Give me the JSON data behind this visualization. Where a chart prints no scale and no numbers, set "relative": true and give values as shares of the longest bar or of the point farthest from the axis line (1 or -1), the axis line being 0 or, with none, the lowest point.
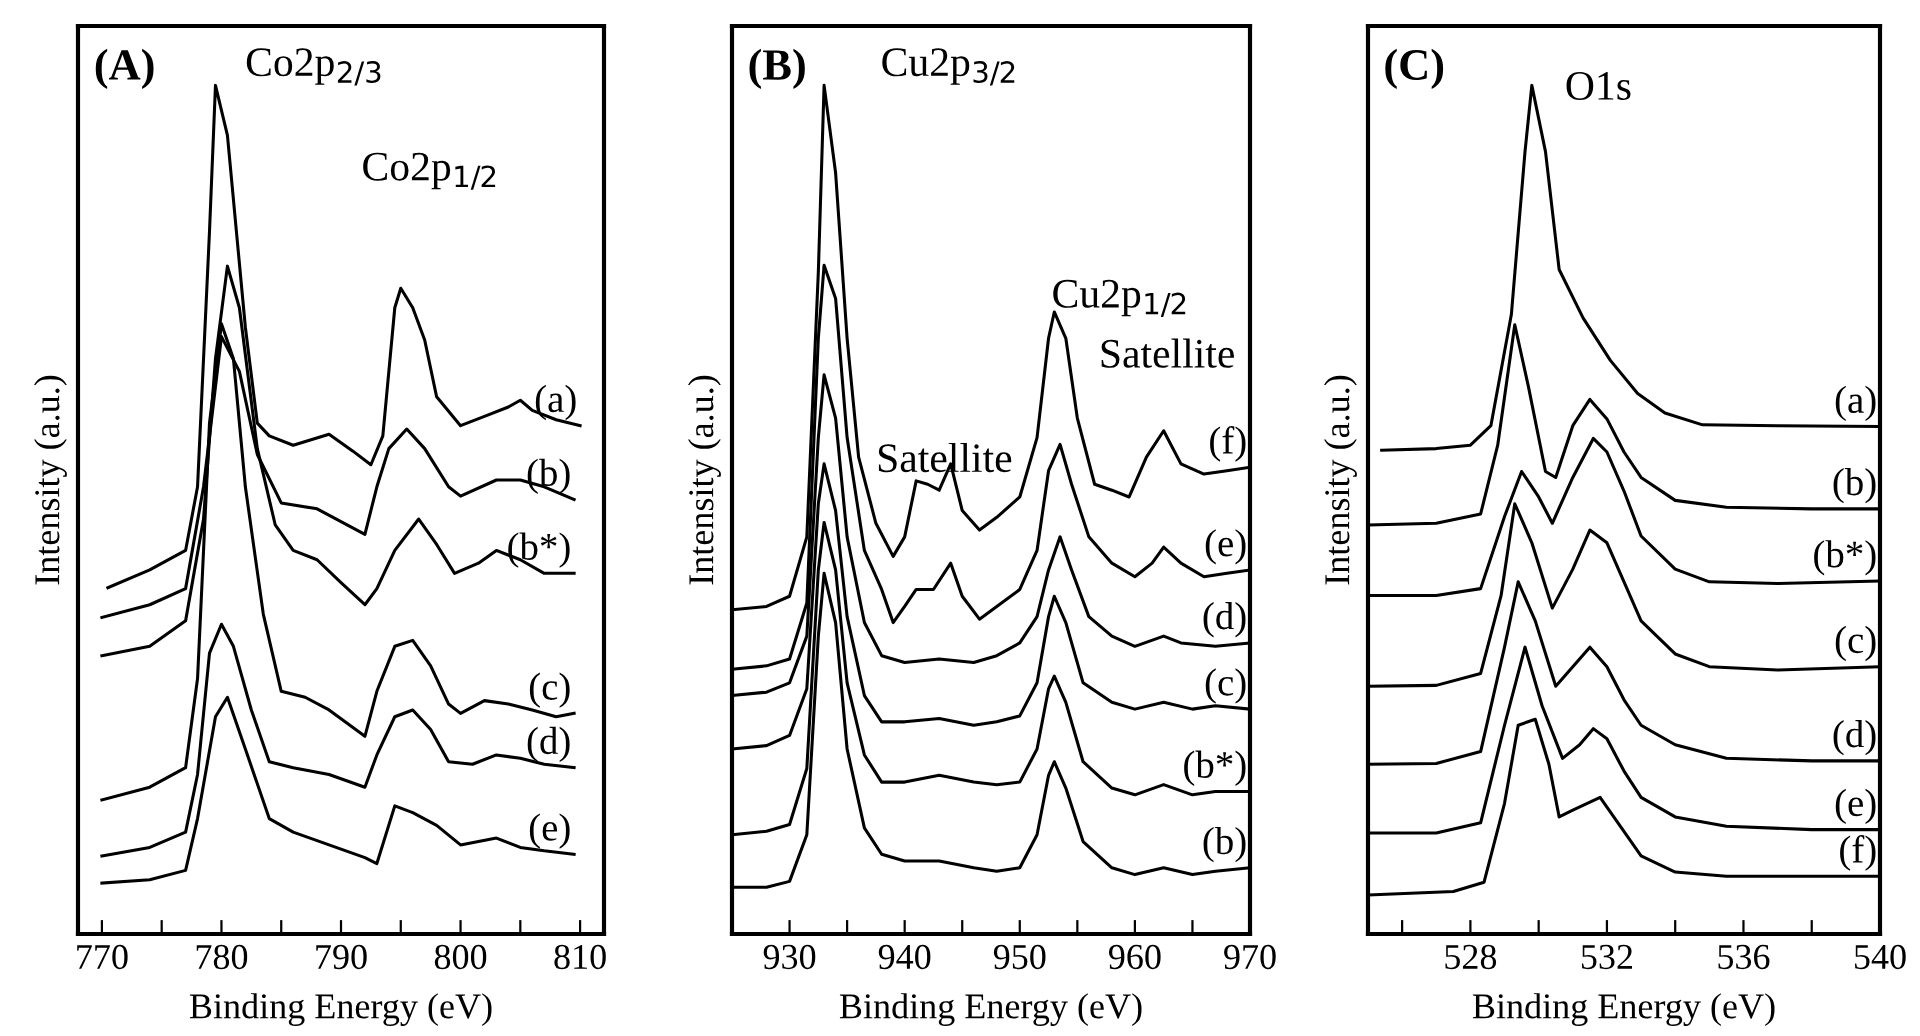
{
  "chart_data": [
    {
      "type": "line",
      "relative": true,
      "xlabel": "Binding Energy (eV)",
      "ylabel": "Intensity (a.u.)",
      "xlim": [
        768,
        812
      ],
      "xticks": [
        770,
        {
          "value": 775,
          "label": null
        },
        780,
        {
          "value": 785,
          "label": null
        },
        790,
        {
          "value": 795,
          "label": null
        },
        800,
        {
          "value": 805,
          "label": null
        },
        810
      ],
      "tick_labels": "x",
      "grid": false,
      "legend": false,
      "annotations": [
        "(A)",
        "Co2p$_{2/3}$",
        "Co2p$_{1/2}$"
      ],
      "series": [
        {
          "name": "(a)",
          "color": "#000000",
          "x": [
            770.5,
            774,
            777,
            778,
            779,
            779.5,
            780.5,
            782,
            783,
            784,
            786,
            789,
            791,
            792.5,
            793.5,
            794.5,
            795,
            796,
            797,
            798,
            800,
            802,
            804,
            805,
            806,
            808,
            810
          ],
          "values": [
            0.408,
            0.429,
            0.452,
            0.527,
            0.828,
            1.0,
            0.941,
            0.715,
            0.602,
            0.587,
            0.576,
            0.589,
            0.569,
            0.553,
            0.587,
            0.738,
            0.761,
            0.738,
            0.7,
            0.633,
            0.599,
            0.61,
            0.621,
            0.629,
            0.617,
            0.606,
            0.599
          ]
        },
        {
          "name": "(b)",
          "color": "#000000",
          "x": [
            770,
            774,
            777,
            778.5,
            780,
            781.5,
            783,
            785,
            788,
            792,
            793,
            794,
            795.5,
            797,
            799,
            800,
            803,
            805,
            807,
            809.5
          ],
          "values": [
            0.373,
            0.388,
            0.407,
            0.527,
            0.704,
            0.663,
            0.565,
            0.508,
            0.501,
            0.471,
            0.527,
            0.572,
            0.595,
            0.572,
            0.527,
            0.516,
            0.535,
            0.535,
            0.527,
            0.512
          ]
        },
        {
          "name": "(b*)",
          "color": "#000000",
          "x": [
            770,
            774,
            777,
            778.5,
            779.5,
            780.5,
            781.5,
            783,
            784.5,
            786,
            788,
            790,
            792,
            793,
            794.5,
            796.5,
            798,
            799.5,
            801.5,
            803,
            805,
            807,
            809.5
          ],
          "values": [
            0.328,
            0.339,
            0.369,
            0.489,
            0.678,
            0.787,
            0.738,
            0.572,
            0.482,
            0.452,
            0.441,
            0.414,
            0.388,
            0.407,
            0.452,
            0.489,
            0.459,
            0.425,
            0.437,
            0.452,
            0.441,
            0.425,
            0.425
          ]
        },
        {
          "name": "(c)",
          "color": "#000000",
          "x": [
            770,
            774,
            777,
            778,
            779,
            780,
            781,
            782,
            783.5,
            785,
            787,
            789,
            792,
            793,
            794.5,
            796,
            797.5,
            799,
            800,
            802,
            804,
            806,
            808,
            809.5
          ],
          "values": [
            0.158,
            0.173,
            0.196,
            0.301,
            0.602,
            0.719,
            0.678,
            0.527,
            0.377,
            0.286,
            0.279,
            0.264,
            0.233,
            0.286,
            0.339,
            0.346,
            0.316,
            0.271,
            0.26,
            0.275,
            0.271,
            0.264,
            0.256,
            0.26
          ]
        },
        {
          "name": "(d)",
          "color": "#000000",
          "x": [
            770,
            774,
            777,
            778,
            779,
            780,
            781,
            782.5,
            784,
            786,
            789,
            792,
            793,
            794.5,
            796,
            797.5,
            799,
            801,
            803,
            805,
            807,
            809.5
          ],
          "values": [
            0.092,
            0.102,
            0.12,
            0.188,
            0.331,
            0.365,
            0.339,
            0.264,
            0.203,
            0.196,
            0.188,
            0.173,
            0.211,
            0.256,
            0.264,
            0.241,
            0.203,
            0.2,
            0.211,
            0.207,
            0.2,
            0.196
          ]
        },
        {
          "name": "(e)",
          "color": "#000000",
          "x": [
            770,
            774,
            777,
            778,
            779.5,
            780.5,
            782,
            784,
            786,
            789,
            792,
            793,
            794.5,
            796,
            798,
            800,
            803,
            805,
            807,
            809.5
          ],
          "values": [
            0.06,
            0.064,
            0.075,
            0.136,
            0.256,
            0.279,
            0.218,
            0.136,
            0.12,
            0.105,
            0.09,
            0.083,
            0.151,
            0.143,
            0.128,
            0.105,
            0.113,
            0.102,
            0.098,
            0.094
          ]
        }
      ]
    },
    {
      "type": "line",
      "relative": true,
      "xlabel": "Binding Energy (eV)",
      "ylabel": "Intensity (a.u.)",
      "xlim": [
        925,
        970
      ],
      "xticks": [
        930,
        {
          "value": 935,
          "label": null
        },
        940,
        {
          "value": 945,
          "label": null
        },
        950,
        {
          "value": 955,
          "label": null
        },
        960,
        {
          "value": 965,
          "label": null
        },
        970
      ],
      "tick_labels": "x",
      "grid": false,
      "legend": false,
      "annotations": [
        "(B)",
        "Cu2p$_{3/2}$",
        "Cu2p$_{1/2}$",
        "Satellite",
        "Satellite"
      ],
      "series": [
        {
          "name": "(f)",
          "color": "#000000",
          "x": [
            925,
            928,
            930,
            931.5,
            932.5,
            933,
            934,
            935,
            936,
            937.5,
            939,
            940,
            941,
            942,
            943,
            944,
            945,
            946.5,
            948,
            950,
            951.5,
            952.5,
            953,
            954,
            955,
            956.5,
            958,
            959.5,
            961,
            962.5,
            964,
            966,
            968,
            970
          ],
          "values": [
            0.382,
            0.386,
            0.398,
            0.468,
            0.78,
            1.0,
            0.897,
            0.702,
            0.562,
            0.484,
            0.445,
            0.468,
            0.534,
            0.53,
            0.523,
            0.554,
            0.499,
            0.476,
            0.491,
            0.515,
            0.585,
            0.702,
            0.733,
            0.702,
            0.608,
            0.53,
            0.523,
            0.515,
            0.562,
            0.593,
            0.554,
            0.542,
            0.546,
            0.55
          ]
        },
        {
          "name": "(e)",
          "color": "#000000",
          "x": [
            925,
            928,
            930,
            931.5,
            932.5,
            933,
            934,
            935,
            936.5,
            938,
            939,
            940,
            941,
            942.5,
            944,
            945,
            946.5,
            948,
            950,
            951.5,
            952.5,
            953.5,
            954.5,
            956,
            958,
            960,
            961.5,
            962.5,
            964,
            966,
            968,
            970
          ],
          "values": [
            0.312,
            0.316,
            0.324,
            0.39,
            0.702,
            0.788,
            0.749,
            0.585,
            0.452,
            0.406,
            0.367,
            0.386,
            0.406,
            0.406,
            0.437,
            0.398,
            0.371,
            0.386,
            0.406,
            0.452,
            0.546,
            0.577,
            0.53,
            0.468,
            0.437,
            0.421,
            0.437,
            0.456,
            0.437,
            0.421,
            0.425,
            0.429
          ]
        },
        {
          "name": "(d)",
          "color": "#000000",
          "x": [
            925,
            928,
            930,
            931.5,
            932.5,
            933,
            934,
            935,
            936.5,
            938,
            940,
            943,
            946,
            948,
            950,
            951.5,
            952.5,
            953.5,
            954.5,
            956,
            958,
            960,
            962.5,
            964,
            967,
            970
          ],
          "values": [
            0.281,
            0.285,
            0.296,
            0.351,
            0.585,
            0.659,
            0.608,
            0.468,
            0.367,
            0.328,
            0.32,
            0.324,
            0.32,
            0.328,
            0.343,
            0.374,
            0.429,
            0.468,
            0.429,
            0.374,
            0.351,
            0.339,
            0.351,
            0.343,
            0.339,
            0.343
          ]
        },
        {
          "name": "(c)",
          "color": "#000000",
          "x": [
            925,
            928,
            930,
            931.5,
            932.5,
            933,
            934,
            935,
            936.5,
            938,
            940,
            943,
            946,
            948,
            950,
            951.5,
            952.5,
            953,
            954,
            955.5,
            958,
            960,
            962.5,
            965,
            967,
            970
          ],
          "values": [
            0.218,
            0.222,
            0.234,
            0.289,
            0.507,
            0.554,
            0.499,
            0.374,
            0.281,
            0.25,
            0.25,
            0.254,
            0.246,
            0.25,
            0.257,
            0.296,
            0.374,
            0.398,
            0.367,
            0.296,
            0.273,
            0.265,
            0.273,
            0.265,
            0.269,
            0.265
          ]
        },
        {
          "name": "(b*)",
          "color": "#000000",
          "x": [
            925,
            928,
            930,
            931.5,
            932.5,
            933,
            934,
            935,
            936.5,
            938,
            940,
            943,
            946,
            948,
            950,
            951.5,
            952.5,
            953,
            954,
            955.5,
            958,
            960,
            962.5,
            965,
            967,
            970
          ],
          "values": [
            0.117,
            0.121,
            0.129,
            0.195,
            0.429,
            0.485,
            0.429,
            0.296,
            0.211,
            0.179,
            0.179,
            0.187,
            0.179,
            0.176,
            0.179,
            0.218,
            0.289,
            0.304,
            0.273,
            0.203,
            0.172,
            0.164,
            0.176,
            0.164,
            0.168,
            0.168
          ]
        },
        {
          "name": "(b)",
          "color": "#000000",
          "x": [
            925,
            928,
            930,
            931.5,
            932.5,
            933,
            934,
            935,
            936.5,
            938,
            940,
            943,
            946,
            948,
            950,
            951.5,
            952.5,
            953,
            954,
            955.5,
            958,
            960,
            962.5,
            965,
            967,
            970
          ],
          "values": [
            0.055,
            0.055,
            0.062,
            0.117,
            0.351,
            0.425,
            0.367,
            0.218,
            0.125,
            0.094,
            0.086,
            0.086,
            0.078,
            0.074,
            0.078,
            0.117,
            0.187,
            0.203,
            0.172,
            0.109,
            0.078,
            0.07,
            0.078,
            0.07,
            0.074,
            0.078
          ]
        }
      ]
    },
    {
      "type": "line",
      "relative": true,
      "xlabel": "Binding Energy (eV)",
      "ylabel": "Intensity (a.u.)",
      "xlim": [
        525,
        540
      ],
      "xticks": [
        {
          "value": 526,
          "label": null
        },
        528,
        {
          "value": 530,
          "label": null
        },
        532,
        {
          "value": 534,
          "label": null
        },
        536,
        {
          "value": 538,
          "label": null
        },
        540
      ],
      "tick_labels": "x",
      "grid": false,
      "legend": false,
      "annotations": [
        "(C)",
        "O1s"
      ],
      "series": [
        {
          "name": "(a)",
          "color": "#000000",
          "x": [
            525.4,
            527,
            528,
            528.6,
            529.2,
            529.6,
            529.8,
            530.2,
            530.6,
            531.3,
            532.1,
            532.9,
            533.7,
            534.8,
            537,
            540
          ],
          "values": [
            0.57,
            0.572,
            0.576,
            0.599,
            0.73,
            0.922,
            1.0,
            0.922,
            0.783,
            0.726,
            0.676,
            0.637,
            0.614,
            0.6,
            0.599,
            0.598
          ]
        },
        {
          "name": "(b)",
          "color": "#000000",
          "x": [
            525,
            527,
            528.3,
            528.8,
            529.3,
            529.7,
            530.2,
            530.5,
            531,
            531.5,
            532,
            532.5,
            533,
            534,
            535.5,
            538,
            540
          ],
          "values": [
            0.482,
            0.484,
            0.495,
            0.576,
            0.718,
            0.645,
            0.545,
            0.538,
            0.599,
            0.63,
            0.607,
            0.568,
            0.538,
            0.511,
            0.503,
            0.501,
            0.501
          ]
        },
        {
          "name": "(b*)",
          "color": "#000000",
          "x": [
            525.1,
            527,
            528.3,
            529,
            529.5,
            530,
            530.4,
            531,
            531.6,
            532,
            532.5,
            533,
            534,
            535,
            537,
            540
          ],
          "values": [
            0.399,
            0.399,
            0.407,
            0.492,
            0.545,
            0.515,
            0.484,
            0.538,
            0.584,
            0.568,
            0.522,
            0.469,
            0.43,
            0.415,
            0.413,
            0.416
          ]
        },
        {
          "name": "(c)",
          "color": "#000000",
          "x": [
            525,
            527,
            528.3,
            528.9,
            529.3,
            529.8,
            530.4,
            531,
            531.5,
            532,
            532.5,
            533,
            534,
            535,
            537,
            540
          ],
          "values": [
            0.292,
            0.293,
            0.307,
            0.399,
            0.507,
            0.461,
            0.384,
            0.43,
            0.476,
            0.461,
            0.415,
            0.369,
            0.33,
            0.315,
            0.311,
            0.315
          ]
        },
        {
          "name": "(d)",
          "color": "#000000",
          "x": [
            525,
            527,
            528.3,
            529,
            529.4,
            529.9,
            530.5,
            531,
            531.5,
            532,
            532.5,
            533,
            534,
            535.5,
            538,
            540
          ],
          "values": [
            0.2,
            0.201,
            0.215,
            0.338,
            0.415,
            0.369,
            0.292,
            0.315,
            0.338,
            0.315,
            0.276,
            0.246,
            0.223,
            0.207,
            0.204,
            0.204
          ]
        },
        {
          "name": "(e)",
          "color": "#000000",
          "x": [
            525,
            527,
            528.3,
            529,
            529.6,
            530.1,
            530.7,
            531.2,
            531.6,
            532,
            532.5,
            533,
            534,
            535.5,
            538,
            540
          ],
          "values": [
            0.119,
            0.119,
            0.131,
            0.246,
            0.338,
            0.269,
            0.207,
            0.223,
            0.242,
            0.23,
            0.192,
            0.161,
            0.138,
            0.127,
            0.123,
            0.123
          ]
        },
        {
          "name": "(f)",
          "color": "#000000",
          "x": [
            525,
            527.5,
            528.4,
            529,
            529.4,
            529.9,
            530.3,
            530.6,
            531,
            531.8,
            532.2,
            533,
            534,
            535.5,
            538,
            540
          ],
          "values": [
            0.046,
            0.05,
            0.061,
            0.154,
            0.246,
            0.253,
            0.2,
            0.138,
            0.146,
            0.161,
            0.138,
            0.092,
            0.073,
            0.068,
            0.068,
            0.068
          ]
        }
      ]
    }
  ]
}
